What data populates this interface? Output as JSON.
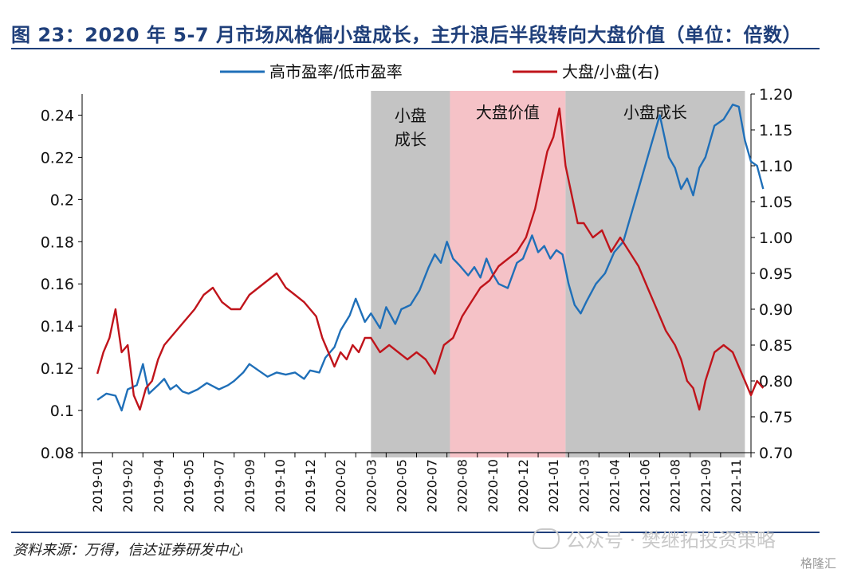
{
  "title": "图 23：2020 年 5-7 月市场风格偏小盘成长，主升浪后半段转向大盘价值（单位：倍数）",
  "source": "资料来源：万得，信达证券研发中心",
  "watermark": "公众号 · 樊继拓投资策略",
  "corner_mark": "格隆汇",
  "colors": {
    "title": "#1f3f7a",
    "blue": "#1f6fb8",
    "red": "#c0141b",
    "gray_band": "#c4c4c4",
    "pink_band": "#f5c2c7"
  },
  "chart_data": {
    "type": "line",
    "xlabel": "",
    "ylabel": "",
    "x_ticks": [
      "2019-01",
      "2019-02",
      "2019-04",
      "2019-05",
      "2019-07",
      "2019-09",
      "2019-10",
      "2019-12",
      "2020-02",
      "2020-03",
      "2020-05",
      "2020-07",
      "2020-08",
      "2020-10",
      "2020-12",
      "2021-01",
      "2021-03",
      "2021-04",
      "2021-06",
      "2021-08",
      "2021-09",
      "2021-11"
    ],
    "y_left": {
      "ticks": [
        "0.08",
        "0.1",
        "0.12",
        "0.14",
        "0.16",
        "0.18",
        "0.2",
        "0.22",
        "0.24"
      ],
      "lim": [
        0.08,
        0.25
      ]
    },
    "y_right": {
      "ticks": [
        "0.70",
        "0.75",
        "0.80",
        "0.85",
        "0.90",
        "0.95",
        "1.00",
        "1.05",
        "1.10",
        "1.15",
        "1.20"
      ],
      "lim": [
        0.7,
        1.2
      ]
    },
    "legend_position": "top",
    "bands": [
      {
        "label": "小盘成长",
        "start": 9.0,
        "end": 11.6,
        "color": "gray"
      },
      {
        "label": "大盘价值",
        "start": 11.6,
        "end": 15.4,
        "color": "pink"
      },
      {
        "label": "小盘成长",
        "start": 15.4,
        "end": 21.3,
        "color": "gray"
      }
    ],
    "series": [
      {
        "name": "高市盈率/低市盈率",
        "axis": "left",
        "color": "#1f6fb8",
        "x": [
          0,
          0.3,
          0.6,
          0.8,
          1.0,
          1.3,
          1.5,
          1.7,
          2.0,
          2.2,
          2.4,
          2.6,
          2.8,
          3.0,
          3.3,
          3.6,
          4.0,
          4.3,
          4.5,
          4.8,
          5.0,
          5.3,
          5.6,
          5.9,
          6.2,
          6.5,
          6.8,
          7.0,
          7.3,
          7.5,
          7.8,
          8.0,
          8.3,
          8.5,
          8.8,
          9.0,
          9.3,
          9.5,
          9.8,
          10.0,
          10.3,
          10.6,
          10.9,
          11.1,
          11.3,
          11.5,
          11.7,
          11.9,
          12.2,
          12.4,
          12.6,
          12.8,
          13.0,
          13.2,
          13.5,
          13.8,
          14.0,
          14.3,
          14.5,
          14.7,
          14.9,
          15.1,
          15.3,
          15.5,
          15.7,
          15.9,
          16.1,
          16.4,
          16.7,
          17.0,
          17.3,
          17.6,
          17.9,
          18.2,
          18.5,
          18.8,
          19.0,
          19.2,
          19.4,
          19.6,
          19.8,
          20.0,
          20.3,
          20.6,
          20.9,
          21.1,
          21.3,
          21.5,
          21.7,
          21.9
        ],
        "values": [
          0.105,
          0.108,
          0.107,
          0.1,
          0.11,
          0.112,
          0.122,
          0.108,
          0.112,
          0.115,
          0.11,
          0.112,
          0.109,
          0.108,
          0.11,
          0.113,
          0.11,
          0.112,
          0.114,
          0.118,
          0.122,
          0.119,
          0.116,
          0.118,
          0.117,
          0.118,
          0.115,
          0.119,
          0.118,
          0.125,
          0.13,
          0.138,
          0.145,
          0.153,
          0.142,
          0.146,
          0.139,
          0.149,
          0.141,
          0.148,
          0.15,
          0.157,
          0.168,
          0.174,
          0.17,
          0.18,
          0.172,
          0.169,
          0.164,
          0.168,
          0.163,
          0.172,
          0.165,
          0.16,
          0.158,
          0.17,
          0.172,
          0.183,
          0.175,
          0.178,
          0.172,
          0.176,
          0.174,
          0.16,
          0.15,
          0.146,
          0.152,
          0.16,
          0.165,
          0.175,
          0.18,
          0.195,
          0.21,
          0.225,
          0.24,
          0.22,
          0.215,
          0.205,
          0.21,
          0.202,
          0.215,
          0.22,
          0.235,
          0.238,
          0.245,
          0.244,
          0.228,
          0.218,
          0.216,
          0.205
        ]
      },
      {
        "name": "大盘/小盘(右)",
        "axis": "right",
        "color": "#c0141b",
        "x": [
          0,
          0.2,
          0.4,
          0.6,
          0.8,
          1.0,
          1.2,
          1.4,
          1.6,
          1.8,
          2.0,
          2.2,
          2.4,
          2.6,
          2.8,
          3.0,
          3.2,
          3.5,
          3.8,
          4.1,
          4.4,
          4.7,
          5.0,
          5.3,
          5.6,
          5.9,
          6.2,
          6.5,
          6.8,
          7.0,
          7.2,
          7.4,
          7.6,
          7.8,
          8.0,
          8.2,
          8.4,
          8.6,
          8.8,
          9.0,
          9.3,
          9.6,
          9.9,
          10.2,
          10.5,
          10.8,
          11.1,
          11.4,
          11.7,
          12.0,
          12.3,
          12.6,
          12.9,
          13.2,
          13.5,
          13.8,
          14.1,
          14.4,
          14.6,
          14.8,
          15.0,
          15.2,
          15.4,
          15.6,
          15.8,
          16.0,
          16.3,
          16.6,
          16.9,
          17.2,
          17.5,
          17.8,
          18.1,
          18.4,
          18.7,
          19.0,
          19.2,
          19.4,
          19.6,
          19.8,
          20.0,
          20.3,
          20.6,
          20.9,
          21.1,
          21.3,
          21.5,
          21.7,
          21.9
        ],
        "values": [
          0.81,
          0.84,
          0.86,
          0.9,
          0.84,
          0.85,
          0.78,
          0.76,
          0.79,
          0.8,
          0.83,
          0.85,
          0.86,
          0.87,
          0.88,
          0.89,
          0.9,
          0.92,
          0.93,
          0.91,
          0.9,
          0.9,
          0.92,
          0.93,
          0.94,
          0.95,
          0.93,
          0.92,
          0.91,
          0.9,
          0.89,
          0.86,
          0.84,
          0.82,
          0.84,
          0.83,
          0.85,
          0.84,
          0.86,
          0.86,
          0.84,
          0.85,
          0.84,
          0.83,
          0.84,
          0.83,
          0.81,
          0.85,
          0.86,
          0.89,
          0.91,
          0.93,
          0.94,
          0.96,
          0.97,
          0.98,
          1.0,
          1.04,
          1.08,
          1.12,
          1.14,
          1.18,
          1.1,
          1.06,
          1.02,
          1.02,
          1.0,
          1.01,
          0.98,
          1.0,
          0.98,
          0.96,
          0.93,
          0.9,
          0.87,
          0.85,
          0.83,
          0.8,
          0.79,
          0.76,
          0.8,
          0.84,
          0.85,
          0.84,
          0.82,
          0.8,
          0.78,
          0.8,
          0.79
        ]
      }
    ]
  }
}
